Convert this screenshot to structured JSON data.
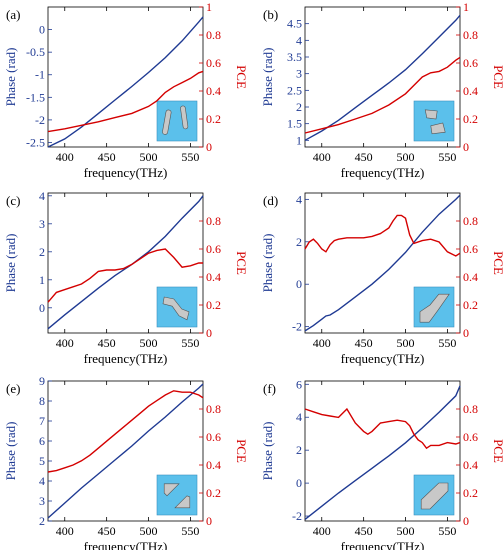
{
  "colors": {
    "phase": "#1f3a93",
    "pce": "#d40000",
    "inset_bg": "#5bc0eb",
    "inset_shape": "#c8c8c8",
    "axis": "#000000"
  },
  "chart_data": [
    {
      "panel_label": "(a)",
      "type": "line",
      "xlabel": "frequency(THz)",
      "ylabel_left": "Phase (rad)",
      "ylabel_right": "PCE",
      "xlim": [
        380,
        565
      ],
      "xticks": [
        400,
        450,
        500,
        550
      ],
      "ylim_left": [
        -2.6,
        0.5
      ],
      "yticks_left": [
        -2.5,
        -2,
        -1.5,
        -1,
        -0.5,
        0
      ],
      "ylim_right": [
        0,
        1
      ],
      "yticks_right": [
        0,
        0.2,
        0.4,
        0.6,
        0.8,
        1
      ],
      "inset_icon": "two-rods-icon",
      "series": [
        {
          "axis": "left",
          "x": [
            380,
            400,
            420,
            440,
            460,
            480,
            500,
            520,
            540,
            560,
            565
          ],
          "y": [
            -2.6,
            -2.42,
            -2.16,
            -1.86,
            -1.56,
            -1.26,
            -0.95,
            -0.62,
            -0.25,
            0.17,
            0.28
          ]
        },
        {
          "axis": "right",
          "x": [
            380,
            400,
            420,
            440,
            460,
            480,
            500,
            510,
            520,
            530,
            540,
            550,
            560,
            565
          ],
          "y": [
            0.11,
            0.13,
            0.155,
            0.18,
            0.21,
            0.24,
            0.29,
            0.33,
            0.39,
            0.43,
            0.46,
            0.49,
            0.53,
            0.54
          ]
        }
      ]
    },
    {
      "panel_label": "(b)",
      "type": "line",
      "xlabel": "frequency(THz)",
      "ylabel_left": "Phase (rad)",
      "ylabel_right": "PCE",
      "xlim": [
        380,
        565
      ],
      "xticks": [
        400,
        450,
        500,
        550
      ],
      "ylim_left": [
        0.8,
        5.0
      ],
      "yticks_left": [
        1,
        1.5,
        2,
        2.5,
        3,
        3.5,
        4,
        4.5
      ],
      "ylim_right": [
        0,
        1
      ],
      "yticks_right": [
        0,
        0.2,
        0.4,
        0.6,
        0.8,
        1
      ],
      "inset_icon": "two-blocks-icon",
      "series": [
        {
          "axis": "left",
          "x": [
            380,
            400,
            420,
            440,
            460,
            480,
            500,
            520,
            540,
            560,
            565
          ],
          "y": [
            1.0,
            1.28,
            1.6,
            1.98,
            2.35,
            2.72,
            3.12,
            3.6,
            4.1,
            4.6,
            4.75
          ]
        },
        {
          "axis": "right",
          "x": [
            380,
            400,
            420,
            440,
            460,
            480,
            500,
            510,
            520,
            530,
            540,
            550,
            560,
            565
          ],
          "y": [
            0.1,
            0.13,
            0.16,
            0.2,
            0.24,
            0.3,
            0.38,
            0.44,
            0.5,
            0.53,
            0.54,
            0.57,
            0.62,
            0.64
          ]
        }
      ]
    },
    {
      "panel_label": "(c)",
      "type": "line",
      "xlabel": "frequency(THz)",
      "ylabel_left": "Phase (rad)",
      "ylabel_right": "PCE",
      "xlim": [
        380,
        565
      ],
      "xticks": [
        400,
        450,
        500,
        550
      ],
      "ylim_left": [
        -0.9,
        4.1
      ],
      "yticks_left": [
        0,
        1,
        2,
        3,
        4
      ],
      "ylim_right": [
        0,
        1
      ],
      "yticks_right": [
        0,
        0.2,
        0.4,
        0.6,
        0.8
      ],
      "inset_icon": "s-bar-icon",
      "series": [
        {
          "axis": "left",
          "x": [
            380,
            400,
            420,
            440,
            460,
            480,
            500,
            520,
            540,
            560,
            565
          ],
          "y": [
            -0.75,
            -0.25,
            0.22,
            0.7,
            1.15,
            1.55,
            2.0,
            2.55,
            3.2,
            3.8,
            4.0
          ]
        },
        {
          "axis": "right",
          "x": [
            380,
            390,
            400,
            410,
            420,
            430,
            440,
            450,
            460,
            470,
            480,
            490,
            500,
            510,
            520,
            530,
            540,
            550,
            560,
            565
          ],
          "y": [
            0.22,
            0.29,
            0.31,
            0.33,
            0.35,
            0.39,
            0.44,
            0.45,
            0.45,
            0.46,
            0.49,
            0.53,
            0.57,
            0.59,
            0.6,
            0.54,
            0.47,
            0.48,
            0.5,
            0.5
          ]
        }
      ]
    },
    {
      "panel_label": "(d)",
      "type": "line",
      "xlabel": "frequency(THz)",
      "ylabel_left": "Phase (rad)",
      "ylabel_right": "PCE",
      "xlim": [
        380,
        565
      ],
      "xticks": [
        400,
        450,
        500,
        550
      ],
      "ylim_left": [
        -2.3,
        4.3
      ],
      "yticks_left": [
        -2,
        0,
        2,
        4
      ],
      "ylim_right": [
        0,
        1
      ],
      "yticks_right": [
        0,
        0.2,
        0.4,
        0.6,
        0.8
      ],
      "inset_icon": "diagonal-bend-icon",
      "series": [
        {
          "axis": "left",
          "x": [
            380,
            390,
            400,
            405,
            410,
            420,
            440,
            460,
            480,
            500,
            520,
            540,
            560,
            565
          ],
          "y": [
            -2.2,
            -1.95,
            -1.65,
            -1.5,
            -1.45,
            -1.2,
            -0.6,
            0.0,
            0.7,
            1.5,
            2.45,
            3.3,
            4.0,
            4.2
          ]
        },
        {
          "axis": "right",
          "x": [
            380,
            385,
            390,
            395,
            400,
            405,
            410,
            415,
            420,
            430,
            440,
            450,
            460,
            470,
            480,
            485,
            490,
            495,
            500,
            505,
            510,
            520,
            530,
            540,
            550,
            560,
            565
          ],
          "y": [
            0.6,
            0.65,
            0.67,
            0.64,
            0.6,
            0.58,
            0.63,
            0.66,
            0.67,
            0.68,
            0.68,
            0.68,
            0.69,
            0.71,
            0.75,
            0.8,
            0.84,
            0.84,
            0.82,
            0.7,
            0.64,
            0.66,
            0.67,
            0.65,
            0.58,
            0.55,
            0.57
          ]
        }
      ]
    },
    {
      "panel_label": "(e)",
      "type": "line",
      "xlabel": "frequency(THz)",
      "ylabel_left": "Phase (rad)",
      "ylabel_right": "PCE",
      "xlim": [
        380,
        565
      ],
      "xticks": [
        400,
        450,
        500,
        550
      ],
      "ylim_left": [
        2,
        9
      ],
      "yticks_left": [
        2,
        3,
        4,
        5,
        6,
        7,
        8,
        9
      ],
      "ylim_right": [
        0,
        1
      ],
      "yticks_right": [
        0,
        0.2,
        0.4,
        0.6,
        0.8
      ],
      "inset_icon": "two-diagonal-blocks-icon",
      "series": [
        {
          "axis": "left",
          "x": [
            380,
            400,
            420,
            440,
            460,
            480,
            500,
            520,
            540,
            560,
            565
          ],
          "y": [
            2.15,
            2.9,
            3.65,
            4.35,
            5.05,
            5.75,
            6.5,
            7.2,
            7.95,
            8.65,
            8.85
          ]
        },
        {
          "axis": "right",
          "x": [
            380,
            390,
            400,
            410,
            420,
            430,
            440,
            450,
            460,
            470,
            480,
            490,
            500,
            510,
            520,
            530,
            540,
            550,
            560,
            565
          ],
          "y": [
            0.35,
            0.36,
            0.38,
            0.4,
            0.43,
            0.47,
            0.52,
            0.57,
            0.62,
            0.67,
            0.72,
            0.77,
            0.82,
            0.86,
            0.9,
            0.93,
            0.92,
            0.92,
            0.9,
            0.88
          ]
        }
      ]
    },
    {
      "panel_label": "(f)",
      "type": "line",
      "xlabel": "frequency(THz)",
      "ylabel_left": "Phase (rad)",
      "ylabel_right": "PCE",
      "xlim": [
        380,
        565
      ],
      "xticks": [
        400,
        450,
        500,
        550
      ],
      "ylim_left": [
        -2.3,
        6.2
      ],
      "yticks_left": [
        -2,
        0,
        2,
        4,
        6
      ],
      "ylim_right": [
        0,
        1
      ],
      "yticks_right": [
        0,
        0.2,
        0.4,
        0.6,
        0.8
      ],
      "inset_icon": "diagonal-bar-icon",
      "series": [
        {
          "axis": "left",
          "x": [
            380,
            400,
            420,
            440,
            460,
            480,
            500,
            520,
            540,
            560,
            565
          ],
          "y": [
            -2.2,
            -1.4,
            -0.6,
            0.15,
            0.9,
            1.65,
            2.45,
            3.35,
            4.3,
            5.3,
            5.9
          ]
        },
        {
          "axis": "right",
          "x": [
            380,
            390,
            400,
            410,
            420,
            430,
            440,
            450,
            455,
            460,
            470,
            480,
            490,
            500,
            505,
            510,
            515,
            520,
            525,
            530,
            540,
            550,
            560,
            565
          ],
          "y": [
            0.8,
            0.78,
            0.76,
            0.75,
            0.74,
            0.8,
            0.7,
            0.64,
            0.62,
            0.64,
            0.7,
            0.71,
            0.72,
            0.71,
            0.68,
            0.62,
            0.58,
            0.56,
            0.52,
            0.54,
            0.54,
            0.56,
            0.55,
            0.56
          ]
        }
      ]
    }
  ]
}
